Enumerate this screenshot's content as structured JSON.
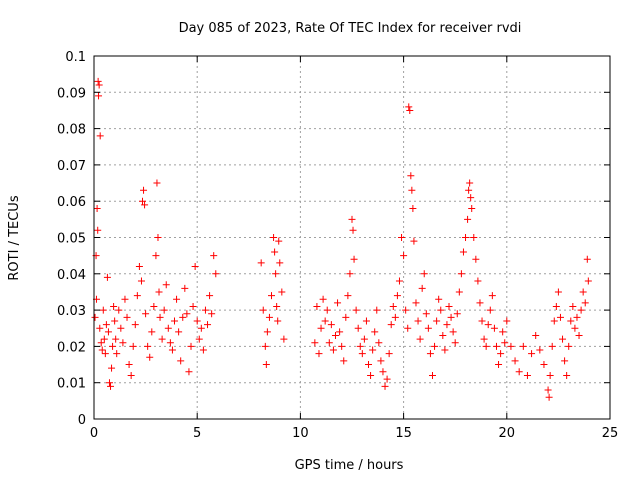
{
  "chart_data": {
    "type": "scatter",
    "title": "Day 085 of 2023, Rate Of TEC Index for receiver rvdi",
    "xlabel": "GPS time / hours",
    "ylabel": "ROTI / TECUs",
    "xlim": [
      0,
      25
    ],
    "ylim": [
      0,
      0.1
    ],
    "xticks": [
      0,
      5,
      10,
      15,
      20,
      25
    ],
    "xtick_labels": [
      "0",
      "5",
      "10",
      "15",
      "20",
      "25"
    ],
    "yticks": [
      0,
      0.01,
      0.02,
      0.03,
      0.04,
      0.05,
      0.06,
      0.07,
      0.08,
      0.09,
      0.1
    ],
    "ytick_labels": [
      "0",
      "0.01",
      "0.02",
      "0.03",
      "0.04",
      "0.05",
      "0.06",
      "0.07",
      "0.08",
      "0.09",
      "0.1"
    ],
    "grid": true,
    "marker": "+",
    "color": "#ff0000",
    "series": [
      {
        "points": [
          [
            0.05,
            0.028
          ],
          [
            0.1,
            0.045
          ],
          [
            0.12,
            0.033
          ],
          [
            0.15,
            0.058
          ],
          [
            0.18,
            0.052
          ],
          [
            0.2,
            0.093
          ],
          [
            0.22,
            0.089
          ],
          [
            0.25,
            0.092
          ],
          [
            0.3,
            0.078
          ],
          [
            0.28,
            0.025
          ],
          [
            0.35,
            0.021
          ],
          [
            0.4,
            0.019
          ],
          [
            0.45,
            0.03
          ],
          [
            0.5,
            0.022
          ],
          [
            0.55,
            0.018
          ],
          [
            0.6,
            0.026
          ],
          [
            0.65,
            0.039
          ],
          [
            0.7,
            0.024
          ],
          [
            0.75,
            0.01
          ],
          [
            0.8,
            0.009
          ],
          [
            0.85,
            0.014
          ],
          [
            0.9,
            0.02
          ],
          [
            0.95,
            0.031
          ],
          [
            1.0,
            0.027
          ],
          [
            1.05,
            0.022
          ],
          [
            1.1,
            0.018
          ],
          [
            1.2,
            0.03
          ],
          [
            1.3,
            0.025
          ],
          [
            1.4,
            0.021
          ],
          [
            1.5,
            0.033
          ],
          [
            1.6,
            0.028
          ],
          [
            1.7,
            0.015
          ],
          [
            1.8,
            0.012
          ],
          [
            1.9,
            0.02
          ],
          [
            2.0,
            0.026
          ],
          [
            2.1,
            0.034
          ],
          [
            2.2,
            0.042
          ],
          [
            2.3,
            0.038
          ],
          [
            2.35,
            0.06
          ],
          [
            2.4,
            0.063
          ],
          [
            2.45,
            0.059
          ],
          [
            2.5,
            0.029
          ],
          [
            2.6,
            0.02
          ],
          [
            2.7,
            0.017
          ],
          [
            2.8,
            0.024
          ],
          [
            2.9,
            0.031
          ],
          [
            3.0,
            0.045
          ],
          [
            3.05,
            0.065
          ],
          [
            3.1,
            0.05
          ],
          [
            3.15,
            0.035
          ],
          [
            3.2,
            0.028
          ],
          [
            3.3,
            0.022
          ],
          [
            3.4,
            0.03
          ],
          [
            3.5,
            0.037
          ],
          [
            3.6,
            0.025
          ],
          [
            3.7,
            0.021
          ],
          [
            3.8,
            0.019
          ],
          [
            3.9,
            0.027
          ],
          [
            4.0,
            0.033
          ],
          [
            4.1,
            0.024
          ],
          [
            4.2,
            0.016
          ],
          [
            4.3,
            0.028
          ],
          [
            4.4,
            0.036
          ],
          [
            4.5,
            0.029
          ],
          [
            4.6,
            0.013
          ],
          [
            4.7,
            0.02
          ],
          [
            4.8,
            0.031
          ],
          [
            4.9,
            0.042
          ],
          [
            5.0,
            0.027
          ],
          [
            5.1,
            0.022
          ],
          [
            5.2,
            0.025
          ],
          [
            5.3,
            0.019
          ],
          [
            5.4,
            0.03
          ],
          [
            5.5,
            0.026
          ],
          [
            5.6,
            0.034
          ],
          [
            5.7,
            0.029
          ],
          [
            5.8,
            0.045
          ],
          [
            5.9,
            0.04
          ],
          [
            8.1,
            0.043
          ],
          [
            8.2,
            0.03
          ],
          [
            8.3,
            0.02
          ],
          [
            8.35,
            0.015
          ],
          [
            8.4,
            0.024
          ],
          [
            8.5,
            0.028
          ],
          [
            8.6,
            0.034
          ],
          [
            8.7,
            0.05
          ],
          [
            8.75,
            0.046
          ],
          [
            8.8,
            0.04
          ],
          [
            8.85,
            0.031
          ],
          [
            8.9,
            0.027
          ],
          [
            8.95,
            0.049
          ],
          [
            9.0,
            0.043
          ],
          [
            9.1,
            0.035
          ],
          [
            9.2,
            0.022
          ],
          [
            10.7,
            0.021
          ],
          [
            10.8,
            0.031
          ],
          [
            10.9,
            0.018
          ],
          [
            11.0,
            0.025
          ],
          [
            11.1,
            0.033
          ],
          [
            11.2,
            0.027
          ],
          [
            11.3,
            0.03
          ],
          [
            11.4,
            0.021
          ],
          [
            11.5,
            0.026
          ],
          [
            11.6,
            0.019
          ],
          [
            11.7,
            0.023
          ],
          [
            11.8,
            0.032
          ],
          [
            11.9,
            0.024
          ],
          [
            12.0,
            0.02
          ],
          [
            12.1,
            0.016
          ],
          [
            12.2,
            0.028
          ],
          [
            12.3,
            0.034
          ],
          [
            12.4,
            0.04
          ],
          [
            12.5,
            0.055
          ],
          [
            12.55,
            0.052
          ],
          [
            12.6,
            0.044
          ],
          [
            12.7,
            0.03
          ],
          [
            12.8,
            0.025
          ],
          [
            12.9,
            0.02
          ],
          [
            13.0,
            0.018
          ],
          [
            13.1,
            0.022
          ],
          [
            13.2,
            0.027
          ],
          [
            13.3,
            0.015
          ],
          [
            13.4,
            0.012
          ],
          [
            13.5,
            0.019
          ],
          [
            13.6,
            0.024
          ],
          [
            13.7,
            0.03
          ],
          [
            13.8,
            0.021
          ],
          [
            13.9,
            0.016
          ],
          [
            14.0,
            0.013
          ],
          [
            14.1,
            0.009
          ],
          [
            14.2,
            0.011
          ],
          [
            14.3,
            0.018
          ],
          [
            14.4,
            0.026
          ],
          [
            14.5,
            0.031
          ],
          [
            14.6,
            0.028
          ],
          [
            14.7,
            0.034
          ],
          [
            14.8,
            0.038
          ],
          [
            14.9,
            0.05
          ],
          [
            15.0,
            0.045
          ],
          [
            15.1,
            0.03
          ],
          [
            15.2,
            0.025
          ],
          [
            15.25,
            0.086
          ],
          [
            15.3,
            0.085
          ],
          [
            15.35,
            0.067
          ],
          [
            15.4,
            0.063
          ],
          [
            15.45,
            0.058
          ],
          [
            15.5,
            0.049
          ],
          [
            15.6,
            0.032
          ],
          [
            15.7,
            0.027
          ],
          [
            15.8,
            0.022
          ],
          [
            15.9,
            0.036
          ],
          [
            16.0,
            0.04
          ],
          [
            16.1,
            0.029
          ],
          [
            16.2,
            0.025
          ],
          [
            16.3,
            0.018
          ],
          [
            16.4,
            0.012
          ],
          [
            16.5,
            0.02
          ],
          [
            16.6,
            0.027
          ],
          [
            16.7,
            0.033
          ],
          [
            16.8,
            0.03
          ],
          [
            16.9,
            0.023
          ],
          [
            17.0,
            0.019
          ],
          [
            17.1,
            0.026
          ],
          [
            17.2,
            0.031
          ],
          [
            17.3,
            0.028
          ],
          [
            17.4,
            0.024
          ],
          [
            17.5,
            0.021
          ],
          [
            17.6,
            0.029
          ],
          [
            17.7,
            0.035
          ],
          [
            17.8,
            0.04
          ],
          [
            17.9,
            0.046
          ],
          [
            18.0,
            0.05
          ],
          [
            18.1,
            0.055
          ],
          [
            18.15,
            0.063
          ],
          [
            18.2,
            0.065
          ],
          [
            18.25,
            0.061
          ],
          [
            18.3,
            0.058
          ],
          [
            18.4,
            0.05
          ],
          [
            18.5,
            0.044
          ],
          [
            18.6,
            0.038
          ],
          [
            18.7,
            0.032
          ],
          [
            18.8,
            0.027
          ],
          [
            18.9,
            0.022
          ],
          [
            19.0,
            0.02
          ],
          [
            19.1,
            0.026
          ],
          [
            19.2,
            0.03
          ],
          [
            19.3,
            0.034
          ],
          [
            19.4,
            0.025
          ],
          [
            19.5,
            0.02
          ],
          [
            19.6,
            0.015
          ],
          [
            19.7,
            0.018
          ],
          [
            19.8,
            0.024
          ],
          [
            19.9,
            0.021
          ],
          [
            20.0,
            0.027
          ],
          [
            20.2,
            0.02
          ],
          [
            20.4,
            0.016
          ],
          [
            20.6,
            0.013
          ],
          [
            20.8,
            0.02
          ],
          [
            21.0,
            0.012
          ],
          [
            21.2,
            0.018
          ],
          [
            21.4,
            0.023
          ],
          [
            21.6,
            0.019
          ],
          [
            21.8,
            0.015
          ],
          [
            22.0,
            0.008
          ],
          [
            22.05,
            0.006
          ],
          [
            22.1,
            0.012
          ],
          [
            22.2,
            0.02
          ],
          [
            22.3,
            0.027
          ],
          [
            22.4,
            0.031
          ],
          [
            22.5,
            0.035
          ],
          [
            22.6,
            0.028
          ],
          [
            22.7,
            0.022
          ],
          [
            22.8,
            0.016
          ],
          [
            22.9,
            0.012
          ],
          [
            23.0,
            0.02
          ],
          [
            23.1,
            0.027
          ],
          [
            23.2,
            0.031
          ],
          [
            23.3,
            0.025
          ],
          [
            23.4,
            0.028
          ],
          [
            23.5,
            0.023
          ],
          [
            23.6,
            0.03
          ],
          [
            23.7,
            0.035
          ],
          [
            23.8,
            0.032
          ],
          [
            23.9,
            0.044
          ],
          [
            23.95,
            0.038
          ]
        ]
      }
    ]
  }
}
